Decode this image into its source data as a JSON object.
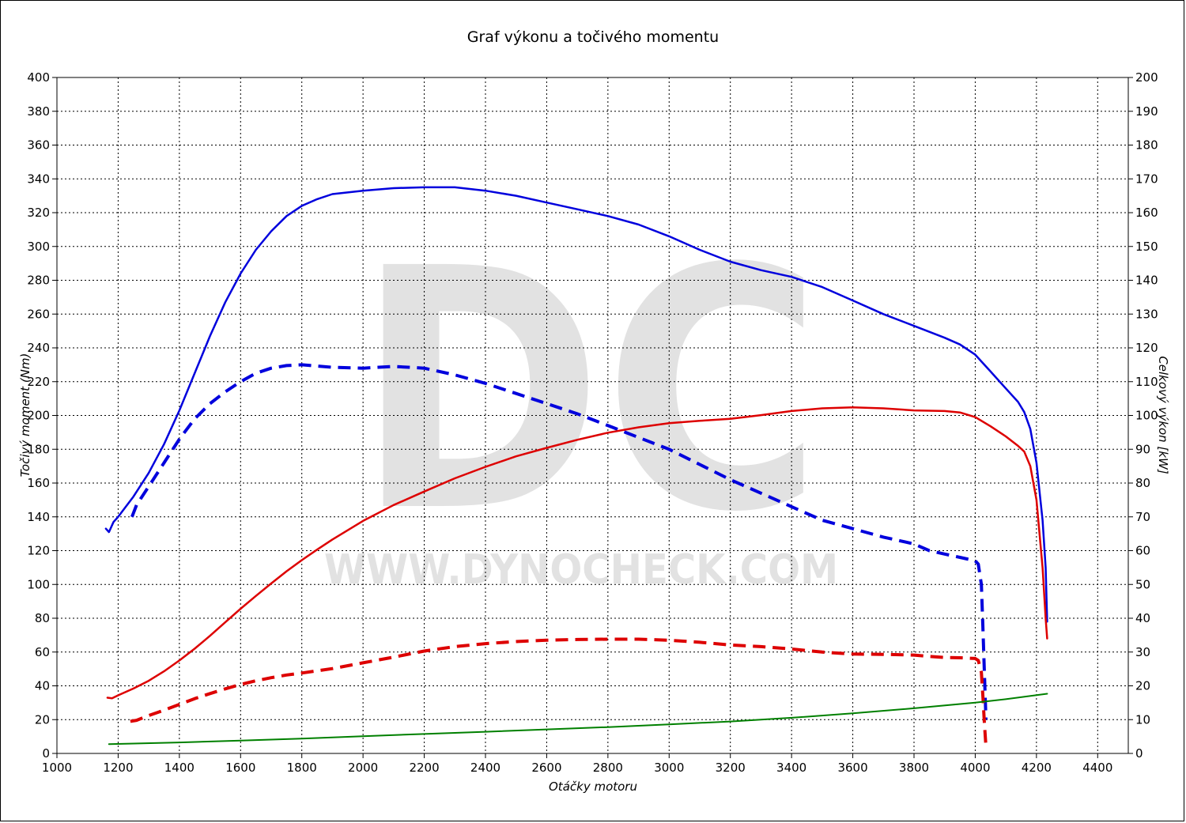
{
  "chart_data": {
    "type": "line",
    "title": "Graf výkonu a točivého momentu",
    "xlabel": "Otáčky motoru",
    "ylabel_left": "Točivý moment (Nm)",
    "ylabel_right": "Celkový výkon [kW]",
    "xlim": [
      1000,
      4500
    ],
    "ylim_left": [
      0,
      400
    ],
    "ylim_right": [
      0,
      200
    ],
    "x_ticks": [
      1000,
      1200,
      1400,
      1600,
      1800,
      2000,
      2200,
      2400,
      2600,
      2800,
      3000,
      3200,
      3400,
      3600,
      3800,
      4000,
      4200,
      4400
    ],
    "y_ticks_left": [
      0,
      20,
      40,
      60,
      80,
      100,
      120,
      140,
      160,
      180,
      200,
      220,
      240,
      260,
      280,
      300,
      320,
      340,
      360,
      380,
      400
    ],
    "y_ticks_right": [
      0,
      10,
      20,
      30,
      40,
      50,
      60,
      70,
      80,
      90,
      100,
      110,
      120,
      130,
      140,
      150,
      160,
      170,
      180,
      190,
      200
    ],
    "grid": true,
    "watermark": {
      "logo": "DC",
      "text": "WWW.DYNOCHECK.COM"
    },
    "series": [
      {
        "axis": "left",
        "color": "#0000dd",
        "style": "solid",
        "points": [
          [
            1160,
            133
          ],
          [
            1170,
            131
          ],
          [
            1185,
            137
          ],
          [
            1200,
            140
          ],
          [
            1250,
            152
          ],
          [
            1300,
            166
          ],
          [
            1350,
            183
          ],
          [
            1400,
            203
          ],
          [
            1450,
            225
          ],
          [
            1500,
            247
          ],
          [
            1550,
            267
          ],
          [
            1600,
            284
          ],
          [
            1650,
            298
          ],
          [
            1700,
            309
          ],
          [
            1750,
            318
          ],
          [
            1800,
            324
          ],
          [
            1850,
            328
          ],
          [
            1900,
            331
          ],
          [
            2000,
            333
          ],
          [
            2100,
            334.5
          ],
          [
            2200,
            335
          ],
          [
            2300,
            335
          ],
          [
            2400,
            333
          ],
          [
            2500,
            330
          ],
          [
            2600,
            326
          ],
          [
            2700,
            322
          ],
          [
            2800,
            318
          ],
          [
            2900,
            313
          ],
          [
            3000,
            306
          ],
          [
            3100,
            298
          ],
          [
            3200,
            291
          ],
          [
            3300,
            286
          ],
          [
            3400,
            282
          ],
          [
            3500,
            276
          ],
          [
            3600,
            268
          ],
          [
            3700,
            260
          ],
          [
            3800,
            253
          ],
          [
            3900,
            246
          ],
          [
            3950,
            242
          ],
          [
            4000,
            236
          ],
          [
            4050,
            226
          ],
          [
            4100,
            216
          ],
          [
            4140,
            208
          ],
          [
            4160,
            202
          ],
          [
            4180,
            192
          ],
          [
            4200,
            172
          ],
          [
            4220,
            138
          ],
          [
            4230,
            110
          ],
          [
            4235,
            78
          ]
        ]
      },
      {
        "axis": "left",
        "color": "#0000dd",
        "style": "dashed",
        "points": [
          [
            1245,
            140
          ],
          [
            1260,
            147
          ],
          [
            1300,
            158
          ],
          [
            1350,
            172
          ],
          [
            1400,
            186
          ],
          [
            1450,
            198
          ],
          [
            1500,
            207
          ],
          [
            1550,
            214
          ],
          [
            1600,
            220
          ],
          [
            1650,
            225
          ],
          [
            1700,
            228
          ],
          [
            1750,
            229.5
          ],
          [
            1800,
            230
          ],
          [
            1900,
            228.5
          ],
          [
            2000,
            228
          ],
          [
            2100,
            229
          ],
          [
            2200,
            228
          ],
          [
            2300,
            224
          ],
          [
            2400,
            219
          ],
          [
            2500,
            213
          ],
          [
            2600,
            207
          ],
          [
            2700,
            201
          ],
          [
            2800,
            194
          ],
          [
            2900,
            187
          ],
          [
            3000,
            180
          ],
          [
            3100,
            171
          ],
          [
            3200,
            162
          ],
          [
            3300,
            154
          ],
          [
            3400,
            146
          ],
          [
            3500,
            138
          ],
          [
            3600,
            133
          ],
          [
            3700,
            128
          ],
          [
            3800,
            124
          ],
          [
            3850,
            120
          ],
          [
            3900,
            118
          ],
          [
            3950,
            116
          ],
          [
            4000,
            114
          ],
          [
            4010,
            112
          ],
          [
            4020,
            100
          ],
          [
            4025,
            75
          ],
          [
            4030,
            48
          ],
          [
            4035,
            20
          ]
        ]
      },
      {
        "axis": "right",
        "color": "#dd0000",
        "style": "solid",
        "points": [
          [
            1165,
            16.5
          ],
          [
            1180,
            16.3
          ],
          [
            1200,
            17.2
          ],
          [
            1250,
            19.2
          ],
          [
            1300,
            21.5
          ],
          [
            1350,
            24.3
          ],
          [
            1400,
            27.5
          ],
          [
            1450,
            31
          ],
          [
            1500,
            34.8
          ],
          [
            1550,
            38.8
          ],
          [
            1600,
            42.8
          ],
          [
            1650,
            46.6
          ],
          [
            1700,
            50.3
          ],
          [
            1750,
            53.9
          ],
          [
            1800,
            57.2
          ],
          [
            1850,
            60.3
          ],
          [
            1900,
            63.3
          ],
          [
            2000,
            68.8
          ],
          [
            2100,
            73.5
          ],
          [
            2200,
            77.5
          ],
          [
            2300,
            81.4
          ],
          [
            2400,
            84.8
          ],
          [
            2500,
            87.9
          ],
          [
            2600,
            90.4
          ],
          [
            2700,
            92.8
          ],
          [
            2800,
            94.9
          ],
          [
            2900,
            96.5
          ],
          [
            3000,
            97.7
          ],
          [
            3100,
            98.4
          ],
          [
            3200,
            99
          ],
          [
            3300,
            100.1
          ],
          [
            3400,
            101.3
          ],
          [
            3500,
            102.1
          ],
          [
            3600,
            102.4
          ],
          [
            3700,
            102.1
          ],
          [
            3800,
            101.5
          ],
          [
            3900,
            101.3
          ],
          [
            3950,
            100.9
          ],
          [
            4000,
            99.5
          ],
          [
            4050,
            96.8
          ],
          [
            4100,
            93.8
          ],
          [
            4140,
            91
          ],
          [
            4160,
            89.3
          ],
          [
            4180,
            85
          ],
          [
            4200,
            75
          ],
          [
            4220,
            55
          ],
          [
            4230,
            40
          ],
          [
            4235,
            34
          ]
        ]
      },
      {
        "axis": "right",
        "color": "#dd0000",
        "style": "dashed",
        "points": [
          [
            1240,
            9.5
          ],
          [
            1260,
            9.8
          ],
          [
            1300,
            11.2
          ],
          [
            1350,
            12.8
          ],
          [
            1400,
            14.5
          ],
          [
            1450,
            16.2
          ],
          [
            1500,
            17.7
          ],
          [
            1550,
            19.1
          ],
          [
            1600,
            20.4
          ],
          [
            1650,
            21.5
          ],
          [
            1700,
            22.4
          ],
          [
            1750,
            23.2
          ],
          [
            1800,
            23.8
          ],
          [
            1900,
            25.1
          ],
          [
            2000,
            26.8
          ],
          [
            2100,
            28.5
          ],
          [
            2200,
            30.3
          ],
          [
            2300,
            31.6
          ],
          [
            2400,
            32.5
          ],
          [
            2500,
            33.1
          ],
          [
            2600,
            33.5
          ],
          [
            2700,
            33.7
          ],
          [
            2800,
            33.8
          ],
          [
            2900,
            33.8
          ],
          [
            3000,
            33.5
          ],
          [
            3100,
            32.9
          ],
          [
            3200,
            32.1
          ],
          [
            3300,
            31.6
          ],
          [
            3400,
            30.9
          ],
          [
            3500,
            30
          ],
          [
            3600,
            29.4
          ],
          [
            3700,
            29.3
          ],
          [
            3800,
            29.1
          ],
          [
            3850,
            28.7
          ],
          [
            3900,
            28.4
          ],
          [
            3950,
            28.3
          ],
          [
            4000,
            28.1
          ],
          [
            4010,
            27.5
          ],
          [
            4020,
            24
          ],
          [
            4025,
            17
          ],
          [
            4030,
            9
          ],
          [
            4035,
            2
          ]
        ]
      },
      {
        "axis": "left",
        "color": "#008000",
        "style": "solid",
        "points": [
          [
            1170,
            5.5
          ],
          [
            1400,
            6.5
          ],
          [
            1600,
            7.6
          ],
          [
            1800,
            8.8
          ],
          [
            2000,
            10.2
          ],
          [
            2200,
            11.5
          ],
          [
            2400,
            12.8
          ],
          [
            2600,
            14.2
          ],
          [
            2800,
            15.6
          ],
          [
            3000,
            17.2
          ],
          [
            3200,
            18.9
          ],
          [
            3400,
            21.1
          ],
          [
            3600,
            23.7
          ],
          [
            3800,
            26.7
          ],
          [
            4000,
            30.1
          ],
          [
            4100,
            32.1
          ],
          [
            4235,
            35.3
          ]
        ]
      }
    ]
  }
}
